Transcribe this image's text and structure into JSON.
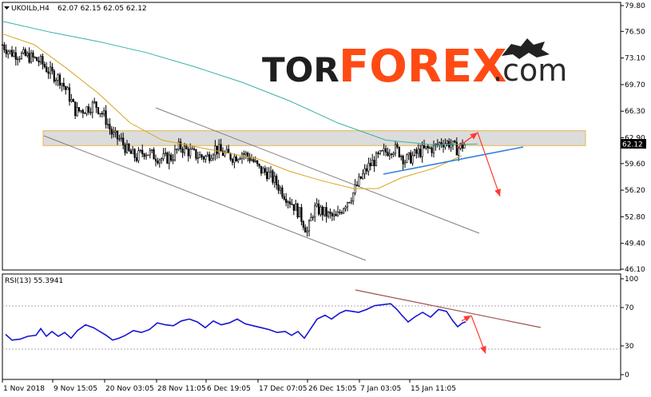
{
  "header": {
    "symbol_label": "UKOILb,H4",
    "ohlc": "62.07 62.15 62.05 62.12"
  },
  "logo": {
    "text_tor": "TOR",
    "text_forex": "FOREX",
    "text_com": ".com"
  },
  "price_marker": "62.12",
  "rsi_label": "RSI(13) 55.3941",
  "colors": {
    "candles": "#000000",
    "ma_fast": "#d9a520",
    "ma_slow": "#35b2a8",
    "rsi_line": "#1414d2",
    "trend_blue": "#2f7fe0",
    "forecast_arrow": "#ff3b30",
    "resistance_fill": "#d6d6d6",
    "resistance_border": "#e6b64a",
    "channel": "#7f7f7f",
    "rsi_trend": "#a0524e"
  },
  "chart_data": [
    {
      "type": "candlestick",
      "series_name": "UKOILb,H4",
      "y_ticks": [
        "79.80",
        "76.50",
        "73.10",
        "69.70",
        "66.30",
        "62.90",
        "59.60",
        "56.20",
        "52.80",
        "49.40",
        "46.10"
      ],
      "ylim": [
        46.1,
        79.8
      ],
      "x_ticks": [
        "1 Nov 2018",
        "9 Nov 15:05",
        "20 Nov 03:05",
        "28 Nov 11:05",
        "6 Dec 19:05",
        "17 Dec 07:05",
        "26 Dec 15:05",
        "7 Jan 03:05",
        "15 Jan 11:05"
      ],
      "close_trace": [
        [
          0,
          74.8
        ],
        [
          10,
          73.8
        ],
        [
          22,
          73.5
        ],
        [
          35,
          73.2
        ],
        [
          48,
          72.6
        ],
        [
          60,
          71.2
        ],
        [
          72,
          70.4
        ],
        [
          82,
          68.6
        ],
        [
          92,
          66.2
        ],
        [
          104,
          66.6
        ],
        [
          116,
          67.2
        ],
        [
          128,
          65.6
        ],
        [
          138,
          63.2
        ],
        [
          148,
          62.6
        ],
        [
          158,
          61.0
        ],
        [
          168,
          60.4
        ],
        [
          178,
          61.2
        ],
        [
          190,
          60.6
        ],
        [
          200,
          60.2
        ],
        [
          212,
          60.4
        ],
        [
          222,
          61.8
        ],
        [
          232,
          61.2
        ],
        [
          244,
          60.6
        ],
        [
          256,
          60.4
        ],
        [
          266,
          61.6
        ],
        [
          278,
          60.8
        ],
        [
          290,
          60.4
        ],
        [
          300,
          61.0
        ],
        [
          312,
          60.2
        ],
        [
          322,
          58.8
        ],
        [
          332,
          58.4
        ],
        [
          342,
          57.2
        ],
        [
          352,
          55.8
        ],
        [
          362,
          54.6
        ],
        [
          372,
          53.2
        ],
        [
          382,
          50.8
        ],
        [
          390,
          53.8
        ],
        [
          398,
          53.6
        ],
        [
          408,
          53.0
        ],
        [
          418,
          52.6
        ],
        [
          428,
          54.4
        ],
        [
          438,
          55.6
        ],
        [
          448,
          57.6
        ],
        [
          458,
          59.2
        ],
        [
          468,
          60.2
        ],
        [
          478,
          61.0
        ],
        [
          488,
          61.6
        ],
        [
          496,
          61.2
        ],
        [
          504,
          60.0
        ],
        [
          512,
          60.4
        ],
        [
          520,
          61.0
        ],
        [
          530,
          61.4
        ],
        [
          540,
          61.6
        ],
        [
          550,
          62.4
        ],
        [
          560,
          62.2
        ],
        [
          568,
          61.4
        ],
        [
          574,
          61.8
        ],
        [
          580,
          62.1
        ]
      ],
      "ma_slow_trace": [
        [
          0,
          77.8
        ],
        [
          60,
          76.4
        ],
        [
          120,
          75.2
        ],
        [
          180,
          73.8
        ],
        [
          240,
          72.0
        ],
        [
          300,
          70.0
        ],
        [
          360,
          67.6
        ],
        [
          420,
          64.8
        ],
        [
          480,
          62.6
        ],
        [
          540,
          62.0
        ],
        [
          595,
          62.1
        ]
      ],
      "ma_fast_trace": [
        [
          0,
          76.2
        ],
        [
          40,
          74.8
        ],
        [
          80,
          71.8
        ],
        [
          120,
          68.6
        ],
        [
          160,
          64.8
        ],
        [
          200,
          62.6
        ],
        [
          240,
          61.8
        ],
        [
          280,
          61.0
        ],
        [
          320,
          60.2
        ],
        [
          360,
          58.6
        ],
        [
          400,
          57.4
        ],
        [
          440,
          56.4
        ],
        [
          470,
          56.4
        ],
        [
          500,
          57.8
        ],
        [
          540,
          59.0
        ],
        [
          575,
          60.6
        ]
      ],
      "resistance_zone": [
        61.9,
        63.8
      ],
      "forecast": {
        "from": 62.6,
        "to": 55.4
      }
    },
    {
      "type": "line",
      "series_name": "RSI(13)",
      "value": 55.3941,
      "y_ticks": [
        "100",
        "70",
        "30",
        "0"
      ],
      "ylim": [
        0,
        100
      ],
      "trace": [
        [
          4,
          42
        ],
        [
          12,
          36
        ],
        [
          22,
          37
        ],
        [
          32,
          40
        ],
        [
          42,
          41
        ],
        [
          48,
          48
        ],
        [
          55,
          40
        ],
        [
          62,
          45
        ],
        [
          70,
          40
        ],
        [
          78,
          44
        ],
        [
          86,
          38
        ],
        [
          94,
          46
        ],
        [
          104,
          52
        ],
        [
          114,
          49
        ],
        [
          122,
          45
        ],
        [
          130,
          41
        ],
        [
          138,
          36
        ],
        [
          146,
          38
        ],
        [
          154,
          41
        ],
        [
          164,
          46
        ],
        [
          174,
          44
        ],
        [
          184,
          47
        ],
        [
          194,
          54
        ],
        [
          204,
          52
        ],
        [
          214,
          51
        ],
        [
          224,
          56
        ],
        [
          234,
          58
        ],
        [
          244,
          55
        ],
        [
          254,
          49
        ],
        [
          264,
          56
        ],
        [
          274,
          52
        ],
        [
          284,
          54
        ],
        [
          294,
          58
        ],
        [
          304,
          53
        ],
        [
          314,
          51
        ],
        [
          324,
          49
        ],
        [
          334,
          47
        ],
        [
          344,
          44
        ],
        [
          354,
          45
        ],
        [
          362,
          41
        ],
        [
          370,
          45
        ],
        [
          378,
          38
        ],
        [
          386,
          48
        ],
        [
          394,
          58
        ],
        [
          404,
          62
        ],
        [
          412,
          58
        ],
        [
          422,
          64
        ],
        [
          430,
          67
        ],
        [
          438,
          66
        ],
        [
          446,
          65
        ],
        [
          456,
          68
        ],
        [
          466,
          72
        ],
        [
          476,
          73
        ],
        [
          486,
          74
        ],
        [
          494,
          68
        ],
        [
          500,
          62
        ],
        [
          508,
          55
        ],
        [
          516,
          60
        ],
        [
          526,
          65
        ],
        [
          536,
          60
        ],
        [
          546,
          68
        ],
        [
          556,
          66
        ],
        [
          564,
          56
        ],
        [
          570,
          50
        ],
        [
          576,
          54
        ],
        [
          580,
          55
        ]
      ],
      "forecast": {
        "from": 56,
        "to": 22
      }
    }
  ]
}
